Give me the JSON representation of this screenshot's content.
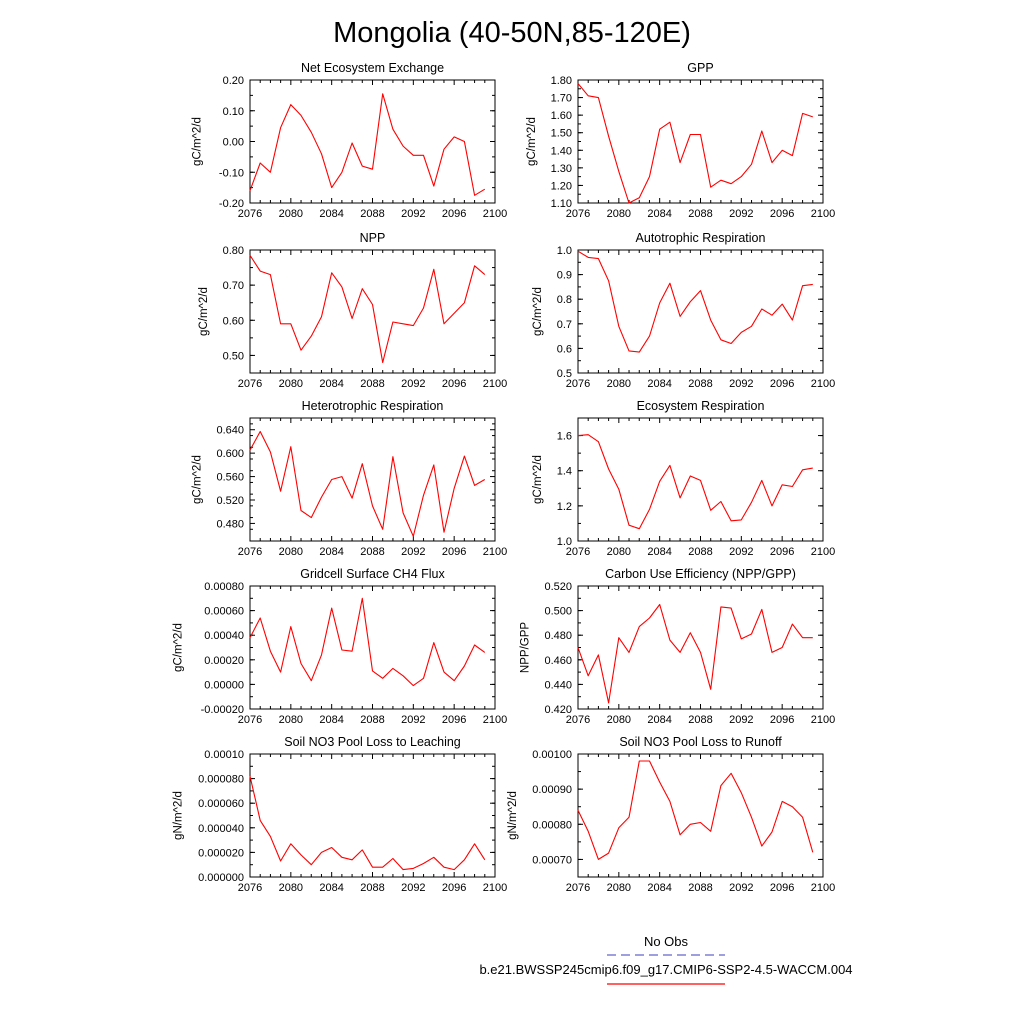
{
  "page_title": "Mongolia (40-50N,85-120E)",
  "colors": {
    "series": "#ff0000",
    "axes": "#000000",
    "obs_legend": "#6666cc"
  },
  "legend": {
    "obs_label": "No Obs",
    "model_label": "b.e21.BWSSP245cmip6.f09_g17.CMIP6-SSP2-4.5-WACCM.004"
  },
  "chart_data": [
    {
      "type": "line",
      "title": "Net Ecosystem Exchange",
      "ylabel": "gC/m^2/d",
      "xlim": [
        2076,
        2100
      ],
      "ylim": [
        -0.2,
        0.2
      ],
      "xticks": [
        2076,
        2080,
        2084,
        2088,
        2092,
        2096,
        2100
      ],
      "xtick_labels": [
        "2076",
        "2080",
        "2084",
        "2088",
        "2092",
        "2096",
        "2100"
      ],
      "yticks": [
        -0.2,
        -0.1,
        0.0,
        0.1,
        0.2
      ],
      "ytick_labels": [
        "-0.20",
        "-0.10",
        "0.00",
        "0.10",
        "0.20"
      ],
      "x": [
        2076,
        2077,
        2078,
        2079,
        2080,
        2081,
        2082,
        2083,
        2084,
        2085,
        2086,
        2087,
        2088,
        2089,
        2090,
        2091,
        2092,
        2093,
        2094,
        2095,
        2096,
        2097,
        2098,
        2099
      ],
      "values": [
        -0.16,
        -0.07,
        -0.1,
        0.045,
        0.12,
        0.085,
        0.03,
        -0.04,
        -0.15,
        -0.1,
        -0.005,
        -0.08,
        -0.09,
        0.155,
        0.04,
        -0.015,
        -0.045,
        -0.045,
        -0.145,
        -0.025,
        0.015,
        0.0,
        -0.175,
        -0.155
      ]
    },
    {
      "type": "line",
      "title": "GPP",
      "ylabel": "gC/m^2/d",
      "xlim": [
        2076,
        2100
      ],
      "ylim": [
        1.1,
        1.8
      ],
      "xticks": [
        2076,
        2080,
        2084,
        2088,
        2092,
        2096,
        2100
      ],
      "xtick_labels": [
        "2076",
        "2080",
        "2084",
        "2088",
        "2092",
        "2096",
        "2100"
      ],
      "yticks": [
        1.1,
        1.2,
        1.3,
        1.4,
        1.5,
        1.6,
        1.7,
        1.8
      ],
      "ytick_labels": [
        "1.10",
        "1.20",
        "1.30",
        "1.40",
        "1.50",
        "1.60",
        "1.70",
        "1.80"
      ],
      "x": [
        2076,
        2077,
        2078,
        2079,
        2080,
        2081,
        2082,
        2083,
        2084,
        2085,
        2086,
        2087,
        2088,
        2089,
        2090,
        2091,
        2092,
        2093,
        2094,
        2095,
        2096,
        2097,
        2098,
        2099
      ],
      "values": [
        1.78,
        1.71,
        1.7,
        1.48,
        1.28,
        1.1,
        1.13,
        1.25,
        1.52,
        1.56,
        1.33,
        1.49,
        1.49,
        1.19,
        1.23,
        1.21,
        1.25,
        1.32,
        1.51,
        1.33,
        1.4,
        1.37,
        1.61,
        1.59
      ]
    },
    {
      "type": "line",
      "title": "NPP",
      "ylabel": "gC/m^2/d",
      "xlim": [
        2076,
        2100
      ],
      "ylim": [
        0.45,
        0.8
      ],
      "xticks": [
        2076,
        2080,
        2084,
        2088,
        2092,
        2096,
        2100
      ],
      "xtick_labels": [
        "2076",
        "2080",
        "2084",
        "2088",
        "2092",
        "2096",
        "2100"
      ],
      "yticks": [
        0.5,
        0.6,
        0.7,
        0.8
      ],
      "ytick_labels": [
        "0.50",
        "0.60",
        "0.70",
        "0.80"
      ],
      "x": [
        2076,
        2077,
        2078,
        2079,
        2080,
        2081,
        2082,
        2083,
        2084,
        2085,
        2086,
        2087,
        2088,
        2089,
        2090,
        2091,
        2092,
        2093,
        2094,
        2095,
        2096,
        2097,
        2098,
        2099
      ],
      "values": [
        0.785,
        0.74,
        0.73,
        0.59,
        0.59,
        0.515,
        0.555,
        0.61,
        0.735,
        0.695,
        0.605,
        0.69,
        0.645,
        0.48,
        0.595,
        0.59,
        0.585,
        0.635,
        0.745,
        0.59,
        0.62,
        0.65,
        0.755,
        0.73
      ]
    },
    {
      "type": "line",
      "title": "Autotrophic Respiration",
      "ylabel": "gC/m^2/d",
      "xlim": [
        2076,
        2100
      ],
      "ylim": [
        0.5,
        1.0
      ],
      "xticks": [
        2076,
        2080,
        2084,
        2088,
        2092,
        2096,
        2100
      ],
      "xtick_labels": [
        "2076",
        "2080",
        "2084",
        "2088",
        "2092",
        "2096",
        "2100"
      ],
      "yticks": [
        0.5,
        0.6,
        0.7,
        0.8,
        0.9,
        1.0
      ],
      "ytick_labels": [
        "0.5",
        "0.6",
        "0.7",
        "0.8",
        "0.9",
        "1.0"
      ],
      "x": [
        2076,
        2077,
        2078,
        2079,
        2080,
        2081,
        2082,
        2083,
        2084,
        2085,
        2086,
        2087,
        2088,
        2089,
        2090,
        2091,
        2092,
        2093,
        2094,
        2095,
        2096,
        2097,
        2098,
        2099
      ],
      "values": [
        0.995,
        0.97,
        0.965,
        0.875,
        0.69,
        0.59,
        0.585,
        0.65,
        0.785,
        0.865,
        0.73,
        0.79,
        0.835,
        0.715,
        0.635,
        0.62,
        0.665,
        0.69,
        0.76,
        0.735,
        0.78,
        0.715,
        0.855,
        0.86
      ]
    },
    {
      "type": "line",
      "title": "Heterotrophic Respiration",
      "ylabel": "gC/m^2/d",
      "xlim": [
        2076,
        2100
      ],
      "ylim": [
        0.45,
        0.66
      ],
      "xticks": [
        2076,
        2080,
        2084,
        2088,
        2092,
        2096,
        2100
      ],
      "xtick_labels": [
        "2076",
        "2080",
        "2084",
        "2088",
        "2092",
        "2096",
        "2100"
      ],
      "yticks": [
        0.48,
        0.52,
        0.56,
        0.6,
        0.64
      ],
      "ytick_labels": [
        "0.480",
        "0.520",
        "0.560",
        "0.600",
        "0.640"
      ],
      "x": [
        2076,
        2077,
        2078,
        2079,
        2080,
        2081,
        2082,
        2083,
        2084,
        2085,
        2086,
        2087,
        2088,
        2089,
        2090,
        2091,
        2092,
        2093,
        2094,
        2095,
        2096,
        2097,
        2098,
        2099
      ],
      "values": [
        0.605,
        0.637,
        0.602,
        0.535,
        0.611,
        0.502,
        0.49,
        0.525,
        0.555,
        0.56,
        0.523,
        0.582,
        0.51,
        0.47,
        0.594,
        0.498,
        0.458,
        0.528,
        0.58,
        0.465,
        0.54,
        0.595,
        0.545,
        0.555
      ]
    },
    {
      "type": "line",
      "title": "Ecosystem Respiration",
      "ylabel": "gC/m^2/d",
      "xlim": [
        2076,
        2100
      ],
      "ylim": [
        1.0,
        1.7
      ],
      "xticks": [
        2076,
        2080,
        2084,
        2088,
        2092,
        2096,
        2100
      ],
      "xtick_labels": [
        "2076",
        "2080",
        "2084",
        "2088",
        "2092",
        "2096",
        "2100"
      ],
      "yticks": [
        1.0,
        1.2,
        1.4,
        1.6
      ],
      "ytick_labels": [
        "1.0",
        "1.2",
        "1.4",
        "1.6"
      ],
      "x": [
        2076,
        2077,
        2078,
        2079,
        2080,
        2081,
        2082,
        2083,
        2084,
        2085,
        2086,
        2087,
        2088,
        2089,
        2090,
        2091,
        2092,
        2093,
        2094,
        2095,
        2096,
        2097,
        2098,
        2099
      ],
      "values": [
        1.6,
        1.605,
        1.565,
        1.41,
        1.295,
        1.09,
        1.07,
        1.18,
        1.34,
        1.43,
        1.245,
        1.37,
        1.345,
        1.175,
        1.225,
        1.115,
        1.12,
        1.22,
        1.345,
        1.2,
        1.32,
        1.31,
        1.405,
        1.415
      ]
    },
    {
      "type": "line",
      "title": "Gridcell Surface CH4 Flux",
      "ylabel": "gC/m^2/d",
      "xlim": [
        2076,
        2100
      ],
      "ylim": [
        -0.0002,
        0.0008
      ],
      "xticks": [
        2076,
        2080,
        2084,
        2088,
        2092,
        2096,
        2100
      ],
      "xtick_labels": [
        "2076",
        "2080",
        "2084",
        "2088",
        "2092",
        "2096",
        "2100"
      ],
      "yticks": [
        -0.0002,
        0.0,
        0.0002,
        0.0004,
        0.0006,
        0.0008
      ],
      "ytick_labels": [
        "-0.00020",
        "0.00000",
        "0.00020",
        "0.00040",
        "0.00060",
        "0.00080"
      ],
      "x": [
        2076,
        2077,
        2078,
        2079,
        2080,
        2081,
        2082,
        2083,
        2084,
        2085,
        2086,
        2087,
        2088,
        2089,
        2090,
        2091,
        2092,
        2093,
        2094,
        2095,
        2096,
        2097,
        2098,
        2099
      ],
      "values": [
        0.00038,
        0.00054,
        0.00027,
        0.0001,
        0.00047,
        0.00017,
        3e-05,
        0.00024,
        0.00062,
        0.00028,
        0.00027,
        0.0007,
        0.00011,
        5e-05,
        0.00013,
        7e-05,
        -1e-05,
        5e-05,
        0.00034,
        0.0001,
        3e-05,
        0.00015,
        0.00032,
        0.00026
      ]
    },
    {
      "type": "line",
      "title": "Carbon Use Efficiency (NPP/GPP)",
      "ylabel": "NPP/GPP",
      "xlim": [
        2076,
        2100
      ],
      "ylim": [
        0.42,
        0.52
      ],
      "xticks": [
        2076,
        2080,
        2084,
        2088,
        2092,
        2096,
        2100
      ],
      "xtick_labels": [
        "2076",
        "2080",
        "2084",
        "2088",
        "2092",
        "2096",
        "2100"
      ],
      "yticks": [
        0.42,
        0.44,
        0.46,
        0.48,
        0.5,
        0.52
      ],
      "ytick_labels": [
        "0.420",
        "0.440",
        "0.460",
        "0.480",
        "0.500",
        "0.520"
      ],
      "x": [
        2076,
        2077,
        2078,
        2079,
        2080,
        2081,
        2082,
        2083,
        2084,
        2085,
        2086,
        2087,
        2088,
        2089,
        2090,
        2091,
        2092,
        2093,
        2094,
        2095,
        2096,
        2097,
        2098,
        2099
      ],
      "values": [
        0.47,
        0.447,
        0.464,
        0.425,
        0.478,
        0.466,
        0.487,
        0.494,
        0.505,
        0.476,
        0.466,
        0.482,
        0.466,
        0.436,
        0.503,
        0.502,
        0.477,
        0.481,
        0.501,
        0.466,
        0.47,
        0.489,
        0.478,
        0.478
      ]
    },
    {
      "type": "line",
      "title": "Soil NO3 Pool Loss to Leaching",
      "ylabel": "gN/m^2/d",
      "xlim": [
        2076,
        2100
      ],
      "ylim": [
        0.0,
        0.0001
      ],
      "xticks": [
        2076,
        2080,
        2084,
        2088,
        2092,
        2096,
        2100
      ],
      "xtick_labels": [
        "2076",
        "2080",
        "2084",
        "2088",
        "2092",
        "2096",
        "2100"
      ],
      "yticks": [
        0.0,
        2e-05,
        4e-05,
        6e-05,
        8e-05,
        0.0001
      ],
      "ytick_labels": [
        "0.000000",
        "0.000020",
        "0.000040",
        "0.000060",
        "0.000080",
        "0.00010"
      ],
      "x": [
        2076,
        2077,
        2078,
        2079,
        2080,
        2081,
        2082,
        2083,
        2084,
        2085,
        2086,
        2087,
        2088,
        2089,
        2090,
        2091,
        2092,
        2093,
        2094,
        2095,
        2096,
        2097,
        2098,
        2099
      ],
      "values": [
        8.2e-05,
        4.6e-05,
        3.3e-05,
        1.3e-05,
        2.7e-05,
        1.8e-05,
        1e-05,
        2e-05,
        2.4e-05,
        1.6e-05,
        1.4e-05,
        2.2e-05,
        8e-06,
        8e-06,
        1.5e-05,
        6e-06,
        7e-06,
        1.1e-05,
        1.6e-05,
        8e-06,
        6e-06,
        1.4e-05,
        2.7e-05,
        1.4e-05
      ]
    },
    {
      "type": "line",
      "title": "Soil NO3 Pool Loss to Runoff",
      "ylabel": "gN/m^2/d",
      "xlim": [
        2076,
        2100
      ],
      "ylim": [
        0.00065,
        0.001
      ],
      "xticks": [
        2076,
        2080,
        2084,
        2088,
        2092,
        2096,
        2100
      ],
      "xtick_labels": [
        "2076",
        "2080",
        "2084",
        "2088",
        "2092",
        "2096",
        "2100"
      ],
      "yticks": [
        0.0007,
        0.0008,
        0.0009,
        0.001
      ],
      "ytick_labels": [
        "0.00070",
        "0.00080",
        "0.00090",
        "0.00100"
      ],
      "x": [
        2076,
        2077,
        2078,
        2079,
        2080,
        2081,
        2082,
        2083,
        2084,
        2085,
        2086,
        2087,
        2088,
        2089,
        2090,
        2091,
        2092,
        2093,
        2094,
        2095,
        2096,
        2097,
        2098,
        2099
      ],
      "values": [
        0.00084,
        0.00078,
        0.0007,
        0.000718,
        0.00079,
        0.00082,
        0.00098,
        0.00098,
        0.00092,
        0.000865,
        0.00077,
        0.0008,
        0.000805,
        0.00078,
        0.00091,
        0.000945,
        0.00089,
        0.00082,
        0.000738,
        0.000778,
        0.000865,
        0.00085,
        0.00082,
        0.00072
      ]
    }
  ]
}
